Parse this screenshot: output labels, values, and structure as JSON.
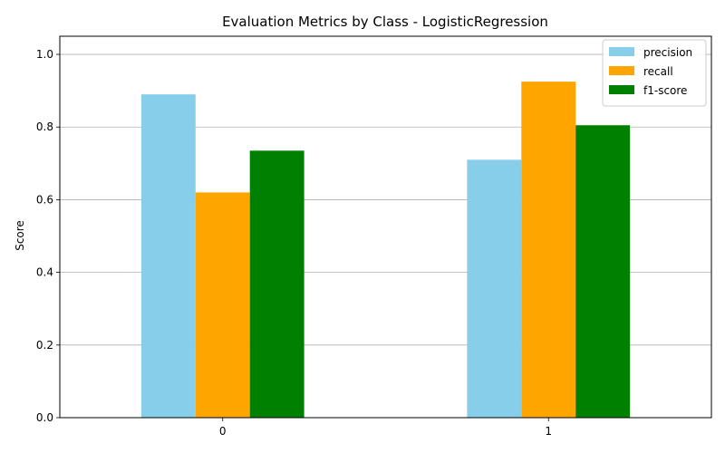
{
  "chart_data": {
    "type": "bar",
    "title": "Evaluation Metrics by Class - LogisticRegression",
    "xlabel": "",
    "ylabel": "Score",
    "categories": [
      "0",
      "1"
    ],
    "series": [
      {
        "name": "precision",
        "values": [
          0.89,
          0.71
        ],
        "color": "#87CEEB"
      },
      {
        "name": "recall",
        "values": [
          0.62,
          0.925
        ],
        "color": "#FFA500"
      },
      {
        "name": "f1-score",
        "values": [
          0.735,
          0.805
        ],
        "color": "#008000"
      }
    ],
    "ylim": [
      0,
      1.05
    ],
    "yticks": [
      "0.0",
      "0.2",
      "0.4",
      "0.6",
      "0.8",
      "1.0"
    ],
    "grid": "y-axis",
    "legend_position": "top-right"
  }
}
